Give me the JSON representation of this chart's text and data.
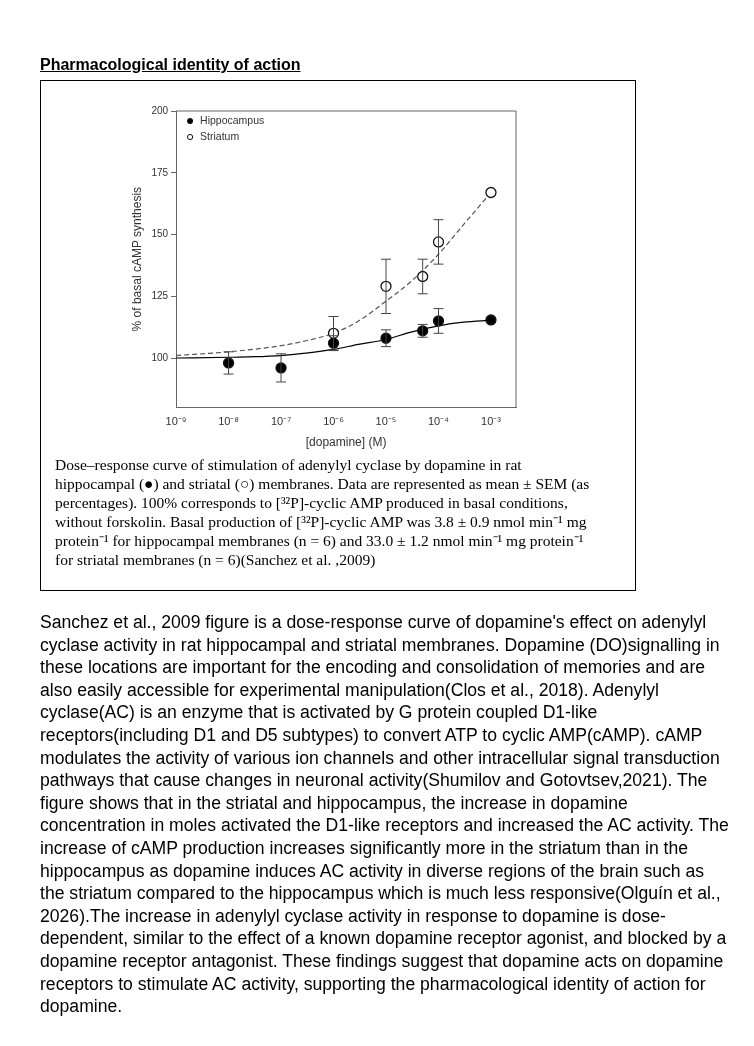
{
  "chart_data": {
    "type": "scatter",
    "title": "Pharmacological identity of action",
    "xlabel": "[dopamine] (M)",
    "ylabel": "% of basal cAMP synthesis",
    "log": "x",
    "legend": "top left",
    "grid": false,
    "xlim": [
      1e-09,
      0.003
    ],
    "xticks": [
      {
        "value": 1e-09,
        "label": "10⁻⁹"
      },
      {
        "value": 1e-08,
        "label": "10⁻⁸"
      },
      {
        "value": 1e-07,
        "label": "10⁻⁷"
      },
      {
        "value": 1e-06,
        "label": "10⁻⁶"
      },
      {
        "value": 1e-05,
        "label": "10⁻⁵"
      },
      {
        "value": 0.0001,
        "label": "10⁻⁴"
      },
      {
        "value": 0.001,
        "label": "10⁻³"
      }
    ],
    "ylim": [
      80,
      200
    ],
    "yticks": [
      100,
      125,
      150,
      175,
      200
    ],
    "series": [
      {
        "name": "Hippocampus",
        "color": "#000000",
        "marker": "circle",
        "x": [
          1e-08,
          1e-07,
          1e-06,
          1e-05,
          5e-05,
          0.0001,
          0.001
        ],
        "values": [
          98,
          96,
          106,
          108,
          111,
          115,
          115.4
        ],
        "errors": [
          4.5,
          5.7,
          3,
          3.4,
          2.6,
          5,
          null
        ]
      },
      {
        "name": "Striatum",
        "color": "#ffffff",
        "marker": "circle",
        "x": [
          1e-06,
          1e-05,
          5e-05,
          0.0001,
          0.001
        ],
        "values": [
          110,
          129,
          133,
          147,
          167
        ],
        "errors": [
          6.8,
          11,
          7,
          9,
          null
        ]
      },
      {
        "type": "line",
        "color": "#000000",
        "line_style": "solid",
        "marker": "none",
        "x": [
          1e-09,
          1e-08,
          1e-07,
          3e-07,
          1e-06,
          3e-06,
          1e-05,
          3e-05,
          0.0001,
          0.0003,
          0.001
        ],
        "values": [
          100,
          100.3,
          101,
          102,
          103.5,
          105.5,
          107.5,
          110.5,
          113,
          114.5,
          115.3
        ]
      },
      {
        "type": "line",
        "color": "#555555",
        "line_style": "dashed",
        "marker": "none",
        "x": [
          1e-09,
          1e-08,
          1e-07,
          3e-07,
          1e-06,
          3e-06,
          1e-05,
          3e-05,
          0.0001,
          0.0003,
          0.001
        ],
        "values": [
          101,
          102.5,
          105,
          107,
          110,
          115,
          123,
          131,
          142,
          154,
          167
        ]
      }
    ],
    "annotations": [
      "Dose–response curve of stimulation of adenylyl cyclase by dopamine in rat hippocampal (●) and striatal (○) membranes. Data are represented as mean ± SEM (as percentages). 100% corresponds to [³²P]-cyclic AMP produced in basal conditions, without forskolin. Basal production of [³²P]-cyclic AMP was 3.8 ± 0.9 nmol min⁻¹ mg protein⁻¹ for hippocampal membranes (n = 6) and 33.0 ± 1.2 nmol min⁻¹ mg protein⁻¹ for striatal membranes (n = 6)(Sanchez et al. ,2009)",
      "Sanchez et al., 2009 figure is a dose-response curve of dopamine's effect on adenylyl cyclase activity in rat hippocampal and striatal membranes. Dopamine (DO)signalling in these locations are important for the encoding and consolidation of memories and are also easily accessible for experimental manipulation(Clos et al., 2018). Adenylyl cyclase(AC) is an enzyme that is activated by G protein coupled D1-like receptors(including D1 and D5 subtypes) to convert ATP to cyclic AMP(cAMP). cAMP modulates the activity of various ion channels and other intracellular signal transduction pathways that cause changes in neuronal activity(Shumilov and Gotovtsev,2021). The figure shows that in the striatal and hippocampus, the increase in dopamine concentration in moles activated the D1-like receptors and increased the AC activity. The increase of cAMP production increases significantly more in the striatum than in the hippocampus as dopamine induces AC activity in diverse regions of the brain such as the striatum compared to the hippocampus which is much less responsive(Olguín et al., 2026).The increase in adenylyl cyclase activity in response to dopamine is dose-dependent, similar to the effect of a known dopamine receptor agonist, and blocked by a dopamine receptor antagonist. These findings suggest that dopamine acts on dopamine receptors to stimulate AC activity, supporting the pharmacological identity of action for dopamine."
    ]
  }
}
